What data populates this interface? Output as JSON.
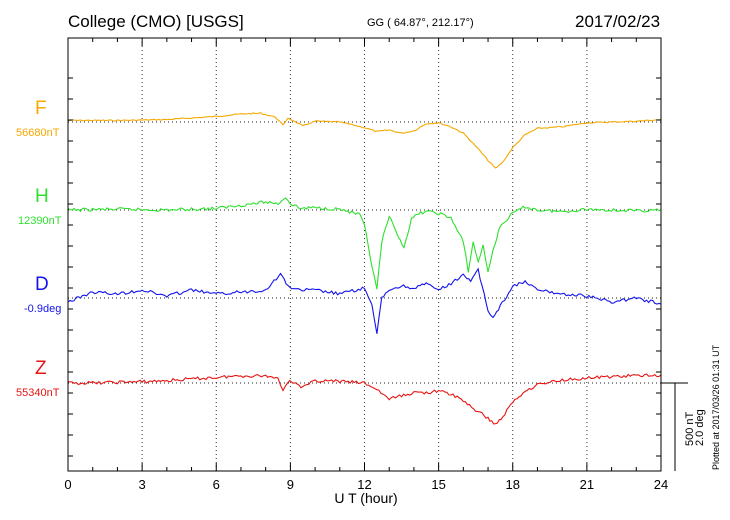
{
  "header": {
    "station": "College (CMO)  [USGS]",
    "coords": "GG ( 64.87°, 212.17°)",
    "date": "2017/02/23"
  },
  "footer": {
    "plotted": "Plotted at 2017/03/26 01:31  UT",
    "scale_nt": "500 nT",
    "scale_deg": "2.0 deg"
  },
  "chart_data": {
    "type": "line",
    "title": "College (CMO)  [USGS]",
    "xlabel": "U T (hour)",
    "xlim": [
      0,
      24
    ],
    "x_ticks": [
      "0",
      "3",
      "6",
      "9",
      "12",
      "15",
      "18",
      "21",
      "24"
    ],
    "grid": true,
    "series": [
      {
        "name": "F",
        "baseline_label": "56680nT",
        "color": "#f5a800",
        "x": [
          0,
          1,
          2,
          3,
          4,
          5,
          6,
          7,
          7.8,
          8.4,
          8.7,
          8.9,
          9.1,
          9.5,
          10,
          11,
          12,
          12.5,
          13,
          13.5,
          14,
          14.5,
          15,
          15.5,
          16,
          16.5,
          17,
          17.3,
          17.6,
          18,
          18.5,
          19,
          20,
          21,
          22,
          23,
          24
        ],
        "y": [
          10,
          10,
          10,
          12,
          15,
          25,
          35,
          50,
          55,
          30,
          -20,
          25,
          10,
          -25,
          5,
          0,
          -35,
          -60,
          -50,
          -70,
          -55,
          -10,
          -5,
          -30,
          -70,
          -150,
          -240,
          -290,
          -250,
          -160,
          -80,
          -40,
          -30,
          -5,
          0,
          5,
          15
        ]
      },
      {
        "name": "H",
        "baseline_label": "12390nT",
        "color": "#2ee02e",
        "x": [
          0,
          2,
          4,
          6,
          7,
          8,
          8.5,
          8.8,
          9,
          9.4,
          10,
          11,
          11.8,
          12,
          12.3,
          12.5,
          12.7,
          13,
          13.3,
          13.6,
          13.9,
          14.2,
          14.5,
          15,
          15.5,
          16,
          16.2,
          16.4,
          16.6,
          16.8,
          17,
          17.2,
          17.5,
          18,
          18.5,
          19,
          20,
          21,
          22,
          23,
          24
        ],
        "y": [
          0,
          5,
          0,
          10,
          30,
          50,
          40,
          80,
          40,
          10,
          15,
          5,
          -30,
          -100,
          -350,
          -500,
          -200,
          -40,
          -150,
          -230,
          -60,
          -20,
          -10,
          -20,
          -50,
          -200,
          -380,
          -200,
          -330,
          -220,
          -390,
          -250,
          -100,
          -20,
          20,
          0,
          -10,
          5,
          0,
          -5,
          0
        ]
      },
      {
        "name": "D",
        "baseline_label": "-0.9deg",
        "color": "#1414ee",
        "x": [
          0,
          1,
          2,
          3,
          4,
          5,
          6,
          7,
          8,
          8.6,
          8.9,
          9.3,
          10,
          11,
          12,
          12.3,
          12.5,
          12.7,
          13,
          13.5,
          14,
          14.5,
          15,
          15.5,
          16,
          16.3,
          16.6,
          17,
          17.2,
          17.5,
          18,
          18.5,
          19,
          20,
          21,
          22,
          23,
          24
        ],
        "y": [
          -0.1,
          0.15,
          0.1,
          0.2,
          0.05,
          0.2,
          0.1,
          0.15,
          0.2,
          0.6,
          0.3,
          0.2,
          0.2,
          0.1,
          0.25,
          -0.2,
          -0.9,
          0,
          0.2,
          0.3,
          0.25,
          0.35,
          0.2,
          0.35,
          0.6,
          0.4,
          0.7,
          -0.3,
          -0.5,
          -0.2,
          0.3,
          0.4,
          0.2,
          0.1,
          0.05,
          -0.1,
          0,
          -0.15
        ]
      },
      {
        "name": "Z",
        "baseline_label": "55340nT",
        "color": "#e81414",
        "x": [
          0,
          1,
          2,
          3,
          4,
          5,
          6,
          7,
          8,
          8.5,
          8.7,
          8.9,
          9.2,
          9.5,
          10,
          11,
          12,
          12.5,
          13,
          13.5,
          14,
          14.5,
          15,
          15.5,
          16,
          16.5,
          17,
          17.3,
          17.6,
          18,
          18.5,
          19,
          20,
          21,
          22,
          23,
          24
        ],
        "y": [
          0,
          0,
          5,
          8,
          15,
          25,
          35,
          45,
          45,
          30,
          -40,
          10,
          5,
          -30,
          15,
          10,
          0,
          -40,
          -100,
          -80,
          -60,
          -60,
          -50,
          -70,
          -110,
          -170,
          -220,
          -260,
          -210,
          -120,
          -50,
          -10,
          20,
          30,
          40,
          45,
          50
        ]
      }
    ]
  }
}
